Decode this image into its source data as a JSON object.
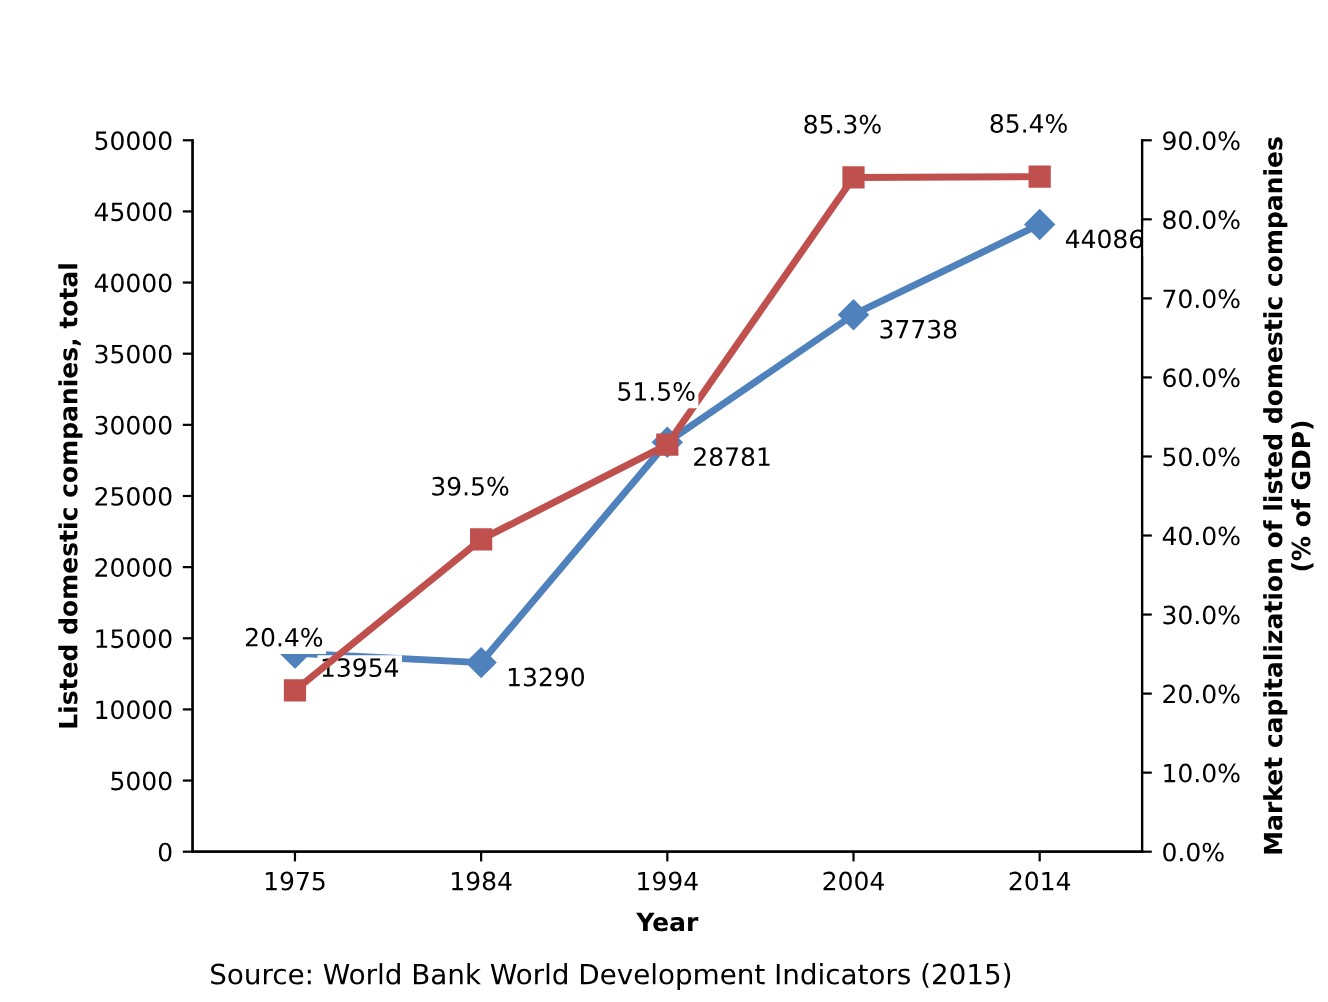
{
  "chart_data": {
    "type": "line",
    "xlabel": "Year",
    "ylabel": "Listed domestic companies, total",
    "y2label": "Market capitalization of listed domestic companies\n(% of GDP)",
    "categories": [
      "1975",
      "1984",
      "1994",
      "2004",
      "2014"
    ],
    "series": [
      {
        "color": "#4f81bd",
        "marker": "diamond",
        "values": [
          13954,
          13290,
          28781,
          37738,
          44086
        ],
        "value_labels": [
          "13954",
          "13290",
          "28781",
          "37738",
          "44086"
        ]
      },
      {
        "color": "#c0504d",
        "marker": "square",
        "axis": "y2",
        "values": [
          20.4,
          39.5,
          51.5,
          85.3,
          85.4
        ],
        "value_labels": [
          "20.4%",
          "39.5%",
          "51.5%",
          "85.3%",
          "85.4%"
        ]
      }
    ],
    "ylim": [
      0,
      50000
    ],
    "yticks": [
      0,
      5000,
      10000,
      15000,
      20000,
      25000,
      30000,
      35000,
      40000,
      45000,
      50000
    ],
    "y2lim": [
      0,
      90
    ],
    "y2ticks": [
      {
        "value": 0,
        "label": "0.0%"
      },
      {
        "value": 10,
        "label": "10.0%"
      },
      {
        "value": 20,
        "label": "20.0%"
      },
      {
        "value": 30,
        "label": "30.0%"
      },
      {
        "value": 40,
        "label": "40.0%"
      },
      {
        "value": 50,
        "label": "50.0%"
      },
      {
        "value": 60,
        "label": "60.0%"
      },
      {
        "value": 70,
        "label": "70.0%"
      },
      {
        "value": 80,
        "label": "80.0%"
      },
      {
        "value": 90,
        "label": "90.0%"
      }
    ],
    "grid": false,
    "legend": false,
    "line_style": "solid",
    "annotations": [
      "Source: World Bank World Development Indicators (2015)"
    ]
  }
}
